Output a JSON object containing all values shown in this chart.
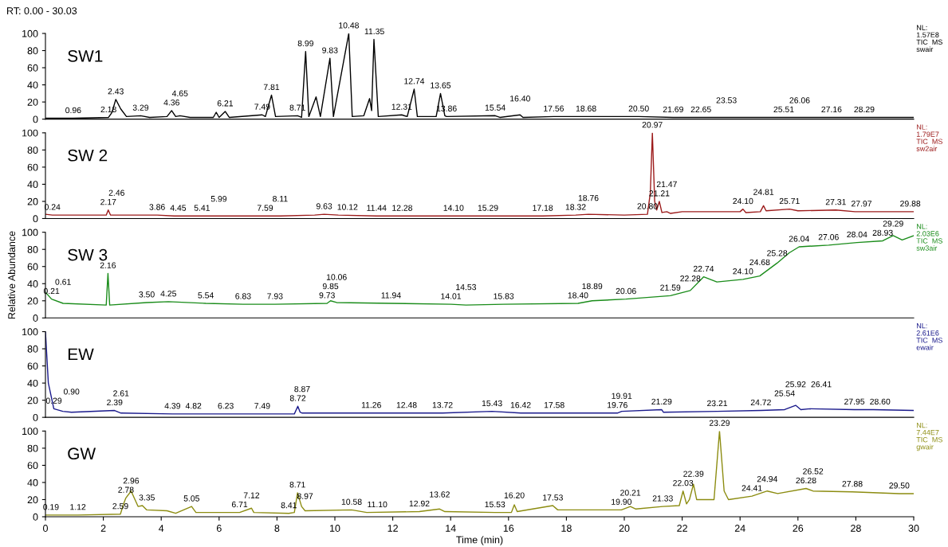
{
  "chart_data": [
    {
      "type": "line",
      "title": "RT: 0.00 - 30.03",
      "xlim": [
        0,
        30
      ],
      "ylim": [
        0,
        100
      ],
      "yticks": [
        0,
        20,
        40,
        60,
        80,
        100
      ],
      "tick_labels": "y",
      "series": [
        {
          "name": "SW1",
          "color": "#000000",
          "x": [
            0,
            0.96,
            2.18,
            2.3,
            2.43,
            2.6,
            2.8,
            3.29,
            3.6,
            4.2,
            4.36,
            4.5,
            4.65,
            5.0,
            5.8,
            5.9,
            6.0,
            6.21,
            6.35,
            7.49,
            7.6,
            7.81,
            7.95,
            8.71,
            8.85,
            8.99,
            9.1,
            9.35,
            9.5,
            9.83,
            9.95,
            10.48,
            10.6,
            11.0,
            11.2,
            11.27,
            11.35,
            11.5,
            12.31,
            12.5,
            12.74,
            12.85,
            13.5,
            13.65,
            13.8,
            13.86,
            15.54,
            15.7,
            16.4,
            16.5,
            17.56,
            18.68,
            20.5,
            21.69,
            22.65,
            23.53,
            25.51,
            26.06,
            27.16,
            28.29,
            30
          ],
          "values": [
            1,
            1,
            2,
            8,
            23,
            12,
            3,
            4,
            2,
            3,
            10,
            3,
            4,
            2,
            2,
            8,
            2,
            9,
            2,
            5,
            3,
            28,
            3,
            4,
            2,
            79,
            3,
            26,
            3,
            71,
            3,
            100,
            3,
            4,
            24,
            10,
            93,
            3,
            5,
            3,
            35,
            3,
            3,
            30,
            4,
            3,
            4,
            2,
            5,
            2,
            3,
            3,
            3,
            2,
            2,
            2,
            2,
            2,
            2,
            2,
            2
          ]
        }
      ],
      "annotations": [
        "NL:\n1.57E8\nTIC  MS\nswair",
        {
          "text": "0.96",
          "x": 0.96,
          "y": 1
        },
        {
          "text": "2.18",
          "x": 2.18,
          "y": 2
        },
        {
          "text": "2.43",
          "x": 2.43,
          "y": 23
        },
        {
          "text": "3.29",
          "x": 3.29,
          "y": 4
        },
        {
          "text": "4.36",
          "x": 4.36,
          "y": 10
        },
        {
          "text": "4.65",
          "x": 4.65,
          "y": 4
        },
        {
          "text": "6.21",
          "x": 6.21,
          "y": 9
        },
        {
          "text": "7.49",
          "x": 7.49,
          "y": 5
        },
        {
          "text": "7.81",
          "x": 7.81,
          "y": 28
        },
        {
          "text": "8.71",
          "x": 8.71,
          "y": 4
        },
        {
          "text": "8.99",
          "x": 8.99,
          "y": 79
        },
        {
          "text": "9.83",
          "x": 9.83,
          "y": 71
        },
        {
          "text": "10.48",
          "x": 10.48,
          "y": 100
        },
        {
          "text": "11.35",
          "x": 11.35,
          "y": 93
        },
        {
          "text": "12.31",
          "x": 12.31,
          "y": 5
        },
        {
          "text": "12.74",
          "x": 12.74,
          "y": 35
        },
        {
          "text": "13.65",
          "x": 13.65,
          "y": 30
        },
        {
          "text": "13.86",
          "x": 13.86,
          "y": 3
        },
        {
          "text": "15.54",
          "x": 15.54,
          "y": 4
        },
        {
          "text": "16.40",
          "x": 16.4,
          "y": 5
        },
        {
          "text": "17.56",
          "x": 17.56,
          "y": 3
        },
        {
          "text": "18.68",
          "x": 18.68,
          "y": 3
        },
        {
          "text": "20.50",
          "x": 20.5,
          "y": 3
        },
        {
          "text": "21.69",
          "x": 21.69,
          "y": 2
        },
        {
          "text": "22.65",
          "x": 22.65,
          "y": 2
        },
        {
          "text": "23.53",
          "x": 23.53,
          "y": 2
        },
        {
          "text": "25.51",
          "x": 25.51,
          "y": 2
        },
        {
          "text": "26.06",
          "x": 26.06,
          "y": 2
        },
        {
          "text": "27.16",
          "x": 27.16,
          "y": 2
        },
        {
          "text": "28.29",
          "x": 28.29,
          "y": 2
        }
      ]
    },
    {
      "type": "line",
      "xlim": [
        0,
        30
      ],
      "ylim": [
        0,
        100
      ],
      "yticks": [
        0,
        20,
        40,
        60,
        80,
        100
      ],
      "tick_labels": "y",
      "series": [
        {
          "name": "SW 2",
          "color": "#9c1b1b",
          "x": [
            0,
            0.24,
            2.1,
            2.17,
            2.25,
            2.46,
            3.86,
            4.45,
            5.41,
            5.99,
            7.59,
            8.11,
            9.3,
            9.63,
            10.12,
            11.44,
            12.28,
            14.1,
            15.29,
            17.18,
            18.32,
            18.76,
            20.0,
            20.8,
            20.9,
            20.97,
            21.05,
            21.12,
            21.21,
            21.3,
            21.47,
            21.6,
            22.0,
            23.0,
            24.0,
            24.1,
            24.2,
            24.7,
            24.81,
            24.9,
            25.71,
            26.0,
            27.31,
            27.97,
            29.88,
            30
          ],
          "values": [
            5,
            4,
            4,
            10,
            4,
            4,
            4,
            3,
            3,
            3,
            3,
            3,
            4,
            5,
            4,
            3,
            3,
            3,
            3,
            3,
            4,
            5,
            4,
            5,
            30,
            100,
            20,
            10,
            20,
            7,
            8,
            6,
            8,
            8,
            8,
            11,
            7,
            8,
            15,
            9,
            11,
            9,
            10,
            8,
            8,
            8
          ]
        }
      ],
      "annotations": [
        "NL:\n1.79E7\nTIC  MS\nsw2air",
        {
          "text": "0.24",
          "x": 0.24,
          "y": 4
        },
        {
          "text": "2.17",
          "x": 2.17,
          "y": 10
        },
        {
          "text": "2.46",
          "x": 2.46,
          "y": 4
        },
        {
          "text": "3.86",
          "x": 3.86,
          "y": 4
        },
        {
          "text": "4.45",
          "x": 4.45,
          "y": 3
        },
        {
          "text": "5.41",
          "x": 5.41,
          "y": 3
        },
        {
          "text": "5.99",
          "x": 5.99,
          "y": 3
        },
        {
          "text": "7.59",
          "x": 7.59,
          "y": 3
        },
        {
          "text": "8.11",
          "x": 8.11,
          "y": 3
        },
        {
          "text": "9.63",
          "x": 9.63,
          "y": 5
        },
        {
          "text": "10.12",
          "x": 10.12,
          "y": 4
        },
        {
          "text": "11.44",
          "x": 11.44,
          "y": 3
        },
        {
          "text": "12.28",
          "x": 12.28,
          "y": 3
        },
        {
          "text": "14.10",
          "x": 14.1,
          "y": 3
        },
        {
          "text": "15.29",
          "x": 15.29,
          "y": 3
        },
        {
          "text": "17.18",
          "x": 17.18,
          "y": 3
        },
        {
          "text": "18.32",
          "x": 18.32,
          "y": 4
        },
        {
          "text": "18.76",
          "x": 18.76,
          "y": 5
        },
        {
          "text": "20.80",
          "x": 20.8,
          "y": 5
        },
        {
          "text": "20.97",
          "x": 20.97,
          "y": 100
        },
        {
          "text": "21.21",
          "x": 21.21,
          "y": 20
        },
        {
          "text": "21.47",
          "x": 21.47,
          "y": 8
        },
        {
          "text": "24.10",
          "x": 24.1,
          "y": 11
        },
        {
          "text": "24.81",
          "x": 24.81,
          "y": 15
        },
        {
          "text": "25.71",
          "x": 25.71,
          "y": 11
        },
        {
          "text": "27.31",
          "x": 27.31,
          "y": 10
        },
        {
          "text": "27.97",
          "x": 27.97,
          "y": 8
        },
        {
          "text": "29.88",
          "x": 29.88,
          "y": 8
        }
      ]
    },
    {
      "type": "line",
      "ylabel": "Relative Abundance",
      "xlim": [
        0,
        30
      ],
      "ylim": [
        0,
        100
      ],
      "yticks": [
        0,
        20,
        40,
        60,
        80,
        100
      ],
      "tick_labels": "y",
      "series": [
        {
          "name": "SW 3",
          "color": "#1a8c1a",
          "x": [
            0,
            0.21,
            0.61,
            2.1,
            2.16,
            2.22,
            3.5,
            4.25,
            5.54,
            6.83,
            7.93,
            9.73,
            9.85,
            10.06,
            11.94,
            14.01,
            14.53,
            15.83,
            18.4,
            18.89,
            20.06,
            21.59,
            22.28,
            22.74,
            23.2,
            24.1,
            24.68,
            25.28,
            25.7,
            26.04,
            27.06,
            28.04,
            28.93,
            29.29,
            29.6,
            30
          ],
          "values": [
            30,
            22,
            17,
            15,
            52,
            15,
            18,
            19,
            17,
            16,
            16,
            17,
            20,
            18,
            17,
            16,
            15,
            16,
            17,
            20,
            22,
            26,
            32,
            48,
            42,
            45,
            49,
            64,
            76,
            83,
            85,
            88,
            90,
            96,
            91,
            96
          ]
        }
      ],
      "annotations": [
        "NL:\n2.03E6\nTIC  MS\nsw3air",
        {
          "text": "0.21",
          "x": 0.21,
          "y": 22
        },
        {
          "text": "0.61",
          "x": 0.61,
          "y": 17
        },
        {
          "text": "2.16",
          "x": 2.16,
          "y": 52
        },
        {
          "text": "3.50",
          "x": 3.5,
          "y": 18
        },
        {
          "text": "4.25",
          "x": 4.25,
          "y": 19
        },
        {
          "text": "5.54",
          "x": 5.54,
          "y": 17
        },
        {
          "text": "6.83",
          "x": 6.83,
          "y": 16
        },
        {
          "text": "7.93",
          "x": 7.93,
          "y": 16
        },
        {
          "text": "9.73",
          "x": 9.73,
          "y": 17
        },
        {
          "text": "9.85",
          "x": 9.85,
          "y": 20
        },
        {
          "text": "10.06",
          "x": 10.06,
          "y": 18
        },
        {
          "text": "11.94",
          "x": 11.94,
          "y": 17
        },
        {
          "text": "14.01",
          "x": 14.01,
          "y": 16
        },
        {
          "text": "14.53",
          "x": 14.53,
          "y": 15
        },
        {
          "text": "15.83",
          "x": 15.83,
          "y": 16
        },
        {
          "text": "18.40",
          "x": 18.4,
          "y": 17
        },
        {
          "text": "18.89",
          "x": 18.89,
          "y": 20
        },
        {
          "text": "20.06",
          "x": 20.06,
          "y": 22
        },
        {
          "text": "21.59",
          "x": 21.59,
          "y": 26
        },
        {
          "text": "22.28",
          "x": 22.28,
          "y": 32
        },
        {
          "text": "22.74",
          "x": 22.74,
          "y": 48
        },
        {
          "text": "24.10",
          "x": 24.1,
          "y": 45
        },
        {
          "text": "24.68",
          "x": 24.68,
          "y": 49
        },
        {
          "text": "25.28",
          "x": 25.28,
          "y": 64
        },
        {
          "text": "26.04",
          "x": 26.04,
          "y": 83
        },
        {
          "text": "27.06",
          "x": 27.06,
          "y": 85
        },
        {
          "text": "28.04",
          "x": 28.04,
          "y": 88
        },
        {
          "text": "28.93",
          "x": 28.93,
          "y": 90
        },
        {
          "text": "29.29",
          "x": 29.29,
          "y": 96
        }
      ]
    },
    {
      "type": "line",
      "xlim": [
        0,
        30
      ],
      "ylim": [
        0,
        100
      ],
      "yticks": [
        0,
        20,
        40,
        60,
        80,
        100
      ],
      "tick_labels": "y",
      "series": [
        {
          "name": "EW",
          "color": "#1a1a8c",
          "x": [
            0,
            0.1,
            0.29,
            0.6,
            0.9,
            2.39,
            2.61,
            4.39,
            4.82,
            6.23,
            7.49,
            8.6,
            8.72,
            8.8,
            8.87,
            11.26,
            12.48,
            13.72,
            15.43,
            16.42,
            17.58,
            19.76,
            19.91,
            21.29,
            21.35,
            23.21,
            24.72,
            25.54,
            25.92,
            26.1,
            26.41,
            27.95,
            28.6,
            30
          ],
          "values": [
            100,
            40,
            10,
            7,
            6,
            8,
            5,
            4,
            4,
            4,
            4,
            4,
            13,
            6,
            5,
            5,
            5,
            5,
            7,
            5,
            5,
            5,
            7,
            9,
            6,
            7,
            8,
            9,
            14,
            9,
            10,
            9,
            9,
            8
          ]
        }
      ],
      "annotations": [
        "NL:\n2.61E6\nTIC  MS\newair",
        {
          "text": "0.29",
          "x": 0.29,
          "y": 10
        },
        {
          "text": "0.90",
          "x": 0.9,
          "y": 6
        },
        {
          "text": "2.39",
          "x": 2.39,
          "y": 8
        },
        {
          "text": "2.61",
          "x": 2.61,
          "y": 5
        },
        {
          "text": "4.39",
          "x": 4.39,
          "y": 4
        },
        {
          "text": "4.82",
          "x": 4.82,
          "y": 4
        },
        {
          "text": "6.23",
          "x": 6.23,
          "y": 4
        },
        {
          "text": "7.49",
          "x": 7.49,
          "y": 4
        },
        {
          "text": "8.72",
          "x": 8.72,
          "y": 13
        },
        {
          "text": "8.87",
          "x": 8.87,
          "y": 5
        },
        {
          "text": "11.26",
          "x": 11.26,
          "y": 5
        },
        {
          "text": "12.48",
          "x": 12.48,
          "y": 5
        },
        {
          "text": "13.72",
          "x": 13.72,
          "y": 5
        },
        {
          "text": "15.43",
          "x": 15.43,
          "y": 7
        },
        {
          "text": "16.42",
          "x": 16.42,
          "y": 5
        },
        {
          "text": "17.58",
          "x": 17.58,
          "y": 5
        },
        {
          "text": "19.76",
          "x": 19.76,
          "y": 5
        },
        {
          "text": "19.91",
          "x": 19.91,
          "y": 7
        },
        {
          "text": "21.29",
          "x": 21.29,
          "y": 9
        },
        {
          "text": "23.21",
          "x": 23.21,
          "y": 7
        },
        {
          "text": "24.72",
          "x": 24.72,
          "y": 8
        },
        {
          "text": "25.54",
          "x": 25.54,
          "y": 9
        },
        {
          "text": "25.92",
          "x": 25.92,
          "y": 14
        },
        {
          "text": "26.41",
          "x": 26.41,
          "y": 10
        },
        {
          "text": "27.95",
          "x": 27.95,
          "y": 9
        },
        {
          "text": "28.60",
          "x": 28.6,
          "y": 9
        }
      ]
    },
    {
      "type": "line",
      "xlabel": "Time (min)",
      "xlim": [
        0,
        30
      ],
      "xticks": [
        0,
        2,
        4,
        6,
        8,
        10,
        12,
        14,
        16,
        18,
        20,
        22,
        24,
        26,
        28,
        30
      ],
      "ylim": [
        0,
        100
      ],
      "yticks": [
        0,
        20,
        40,
        60,
        80,
        100
      ],
      "series": [
        {
          "name": "GW",
          "color": "#8c8c10",
          "x": [
            0,
            0.19,
            1.12,
            2.59,
            2.7,
            2.78,
            2.96,
            3.2,
            3.35,
            3.5,
            4.2,
            4.5,
            5.05,
            5.2,
            6.71,
            7.12,
            7.2,
            8.41,
            8.6,
            8.71,
            8.85,
            8.97,
            10.58,
            11.1,
            12.92,
            13.62,
            13.8,
            15.53,
            16.1,
            16.2,
            16.3,
            17.53,
            17.7,
            19.9,
            20.21,
            20.4,
            21.33,
            21.9,
            22.03,
            22.15,
            22.25,
            22.39,
            22.5,
            23.1,
            23.29,
            23.45,
            23.6,
            24.41,
            24.94,
            25.3,
            26.28,
            26.52,
            27.88,
            29.5,
            30
          ],
          "values": [
            2,
            2,
            2,
            3,
            15,
            22,
            30,
            12,
            13,
            8,
            7,
            4,
            12,
            5,
            5,
            10,
            5,
            4,
            5,
            28,
            12,
            7,
            8,
            5,
            6,
            9,
            6,
            5,
            5,
            14,
            6,
            13,
            8,
            8,
            12,
            9,
            12,
            13,
            30,
            15,
            20,
            38,
            20,
            20,
            100,
            30,
            20,
            24,
            30,
            27,
            33,
            30,
            29,
            27,
            27
          ]
        }
      ],
      "annotations": [
        "NL:\n7.44E7\nTIC  MS\ngwair",
        {
          "text": "0.19",
          "x": 0.19,
          "y": 2
        },
        {
          "text": "1.12",
          "x": 1.12,
          "y": 2
        },
        {
          "text": "2.59",
          "x": 2.59,
          "y": 3
        },
        {
          "text": "2.78",
          "x": 2.78,
          "y": 22
        },
        {
          "text": "2.96",
          "x": 2.96,
          "y": 30
        },
        {
          "text": "3.35",
          "x": 3.35,
          "y": 13
        },
        {
          "text": "5.05",
          "x": 5.05,
          "y": 12
        },
        {
          "text": "6.71",
          "x": 6.71,
          "y": 5
        },
        {
          "text": "7.12",
          "x": 7.12,
          "y": 10
        },
        {
          "text": "8.41",
          "x": 8.41,
          "y": 4
        },
        {
          "text": "8.71",
          "x": 8.71,
          "y": 28
        },
        {
          "text": "8.97",
          "x": 8.97,
          "y": 7
        },
        {
          "text": "10.58",
          "x": 10.58,
          "y": 8
        },
        {
          "text": "11.10",
          "x": 11.1,
          "y": 5
        },
        {
          "text": "12.92",
          "x": 12.92,
          "y": 6
        },
        {
          "text": "13.62",
          "x": 13.62,
          "y": 9
        },
        {
          "text": "15.53",
          "x": 15.53,
          "y": 5
        },
        {
          "text": "16.20",
          "x": 16.2,
          "y": 14
        },
        {
          "text": "17.53",
          "x": 17.53,
          "y": 13
        },
        {
          "text": "19.90",
          "x": 19.9,
          "y": 8
        },
        {
          "text": "20.21",
          "x": 20.21,
          "y": 12
        },
        {
          "text": "21.33",
          "x": 21.33,
          "y": 12
        },
        {
          "text": "22.03",
          "x": 22.03,
          "y": 30
        },
        {
          "text": "22.39",
          "x": 22.39,
          "y": 38
        },
        {
          "text": "23.29",
          "x": 23.29,
          "y": 100
        },
        {
          "text": "24.41",
          "x": 24.41,
          "y": 24
        },
        {
          "text": "24.94",
          "x": 24.94,
          "y": 30
        },
        {
          "text": "26.28",
          "x": 26.28,
          "y": 33
        },
        {
          "text": "26.52",
          "x": 26.52,
          "y": 30
        },
        {
          "text": "27.88",
          "x": 27.88,
          "y": 29
        },
        {
          "text": "29.50",
          "x": 29.5,
          "y": 27
        }
      ]
    }
  ]
}
